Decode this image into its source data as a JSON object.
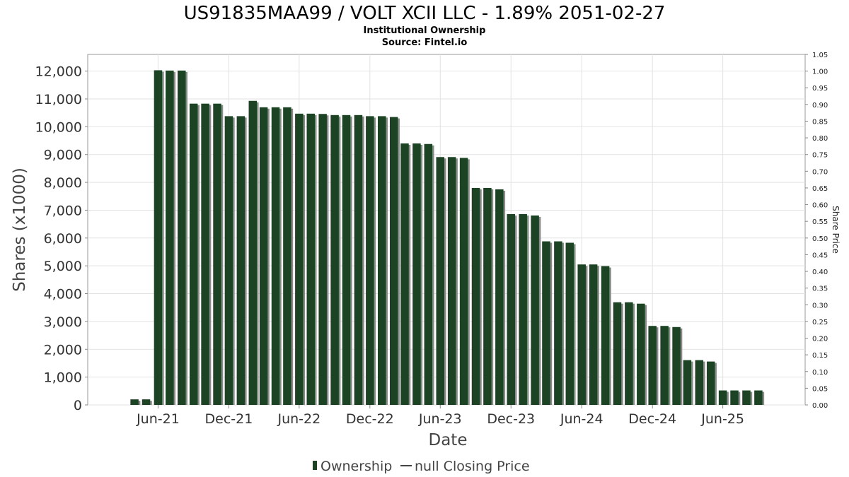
{
  "chart_data": {
    "type": "bar",
    "title": "US91835MAA99 / VOLT XCII LLC - 1.89% 2051-02-27",
    "subtitle_lines": [
      "Institutional Ownership",
      "Source: Fintel.io"
    ],
    "xlabel": "Date",
    "ylabel": "Shares (x1000)",
    "y2label": "Share Price",
    "ylim": [
      0,
      12600
    ],
    "y2lim": [
      0,
      1.05
    ],
    "yticks": [
      0,
      1000,
      2000,
      3000,
      4000,
      5000,
      6000,
      7000,
      8000,
      9000,
      10000,
      11000,
      12000
    ],
    "ytick_labels": [
      "0",
      "1,000",
      "2,000",
      "3,000",
      "4,000",
      "5,000",
      "6,000",
      "7,000",
      "8,000",
      "9,000",
      "10,000",
      "11,000",
      "12,000"
    ],
    "y2ticks": [
      0,
      0.05,
      0.1,
      0.15,
      0.2,
      0.25,
      0.3,
      0.35,
      0.4,
      0.45,
      0.5,
      0.55,
      0.6,
      0.65,
      0.7,
      0.75,
      0.8,
      0.85,
      0.9,
      0.95,
      1.0,
      1.05
    ],
    "y2tick_labels": [
      "0.00",
      "0.05",
      "0.10",
      "0.15",
      "0.20",
      "0.25",
      "0.30",
      "0.35",
      "0.40",
      "0.45",
      "0.50",
      "0.55",
      "0.60",
      "0.65",
      "0.70",
      "0.75",
      "0.80",
      "0.85",
      "0.90",
      "0.95",
      "1.00",
      "1.05"
    ],
    "xlim": [
      "2020-12-01",
      "2025-12-31"
    ],
    "xticks": [
      "2021-06-01",
      "2021-12-01",
      "2022-06-01",
      "2022-12-01",
      "2023-06-01",
      "2023-12-01",
      "2024-06-01",
      "2024-12-01",
      "2025-06-01"
    ],
    "xtick_labels": [
      "Jun-21",
      "Dec-21",
      "Jun-22",
      "Dec-22",
      "Jun-23",
      "Dec-23",
      "Jun-24",
      "Dec-24",
      "Jun-25"
    ],
    "grid": true,
    "legend": {
      "placement": "bottom",
      "entries": [
        "Ownership",
        "null Closing Price"
      ]
    },
    "series": [
      {
        "name": "Ownership",
        "color": "#1c4424",
        "points": [
          [
            "2021-04-01",
            200
          ],
          [
            "2021-05-01",
            200
          ],
          [
            "2021-06-01",
            12030
          ],
          [
            "2021-07-01",
            12020
          ],
          [
            "2021-08-01",
            12020
          ],
          [
            "2021-09-01",
            10830
          ],
          [
            "2021-10-01",
            10830
          ],
          [
            "2021-11-01",
            10830
          ],
          [
            "2021-12-01",
            10380
          ],
          [
            "2022-01-01",
            10380
          ],
          [
            "2022-02-01",
            10930
          ],
          [
            "2022-03-01",
            10700
          ],
          [
            "2022-04-01",
            10700
          ],
          [
            "2022-05-01",
            10700
          ],
          [
            "2022-06-01",
            10470
          ],
          [
            "2022-07-01",
            10470
          ],
          [
            "2022-08-01",
            10460
          ],
          [
            "2022-09-01",
            10420
          ],
          [
            "2022-10-01",
            10420
          ],
          [
            "2022-11-01",
            10420
          ],
          [
            "2022-12-01",
            10380
          ],
          [
            "2023-01-01",
            10380
          ],
          [
            "2023-02-01",
            10350
          ],
          [
            "2023-03-01",
            9400
          ],
          [
            "2023-04-01",
            9400
          ],
          [
            "2023-05-01",
            9380
          ],
          [
            "2023-06-01",
            8910
          ],
          [
            "2023-07-01",
            8910
          ],
          [
            "2023-08-01",
            8880
          ],
          [
            "2023-09-01",
            7800
          ],
          [
            "2023-10-01",
            7800
          ],
          [
            "2023-11-01",
            7750
          ],
          [
            "2023-12-01",
            6860
          ],
          [
            "2024-01-01",
            6860
          ],
          [
            "2024-02-01",
            6810
          ],
          [
            "2024-03-01",
            5880
          ],
          [
            "2024-04-01",
            5880
          ],
          [
            "2024-05-01",
            5830
          ],
          [
            "2024-06-01",
            5050
          ],
          [
            "2024-07-01",
            5050
          ],
          [
            "2024-08-01",
            4990
          ],
          [
            "2024-09-01",
            3690
          ],
          [
            "2024-10-01",
            3690
          ],
          [
            "2024-11-01",
            3640
          ],
          [
            "2024-12-01",
            2840
          ],
          [
            "2025-01-01",
            2840
          ],
          [
            "2025-02-01",
            2800
          ],
          [
            "2025-03-01",
            1610
          ],
          [
            "2025-04-01",
            1610
          ],
          [
            "2025-05-01",
            1560
          ],
          [
            "2025-06-01",
            520
          ],
          [
            "2025-07-01",
            520
          ],
          [
            "2025-08-01",
            520
          ],
          [
            "2025-09-01",
            520
          ]
        ]
      }
    ]
  }
}
